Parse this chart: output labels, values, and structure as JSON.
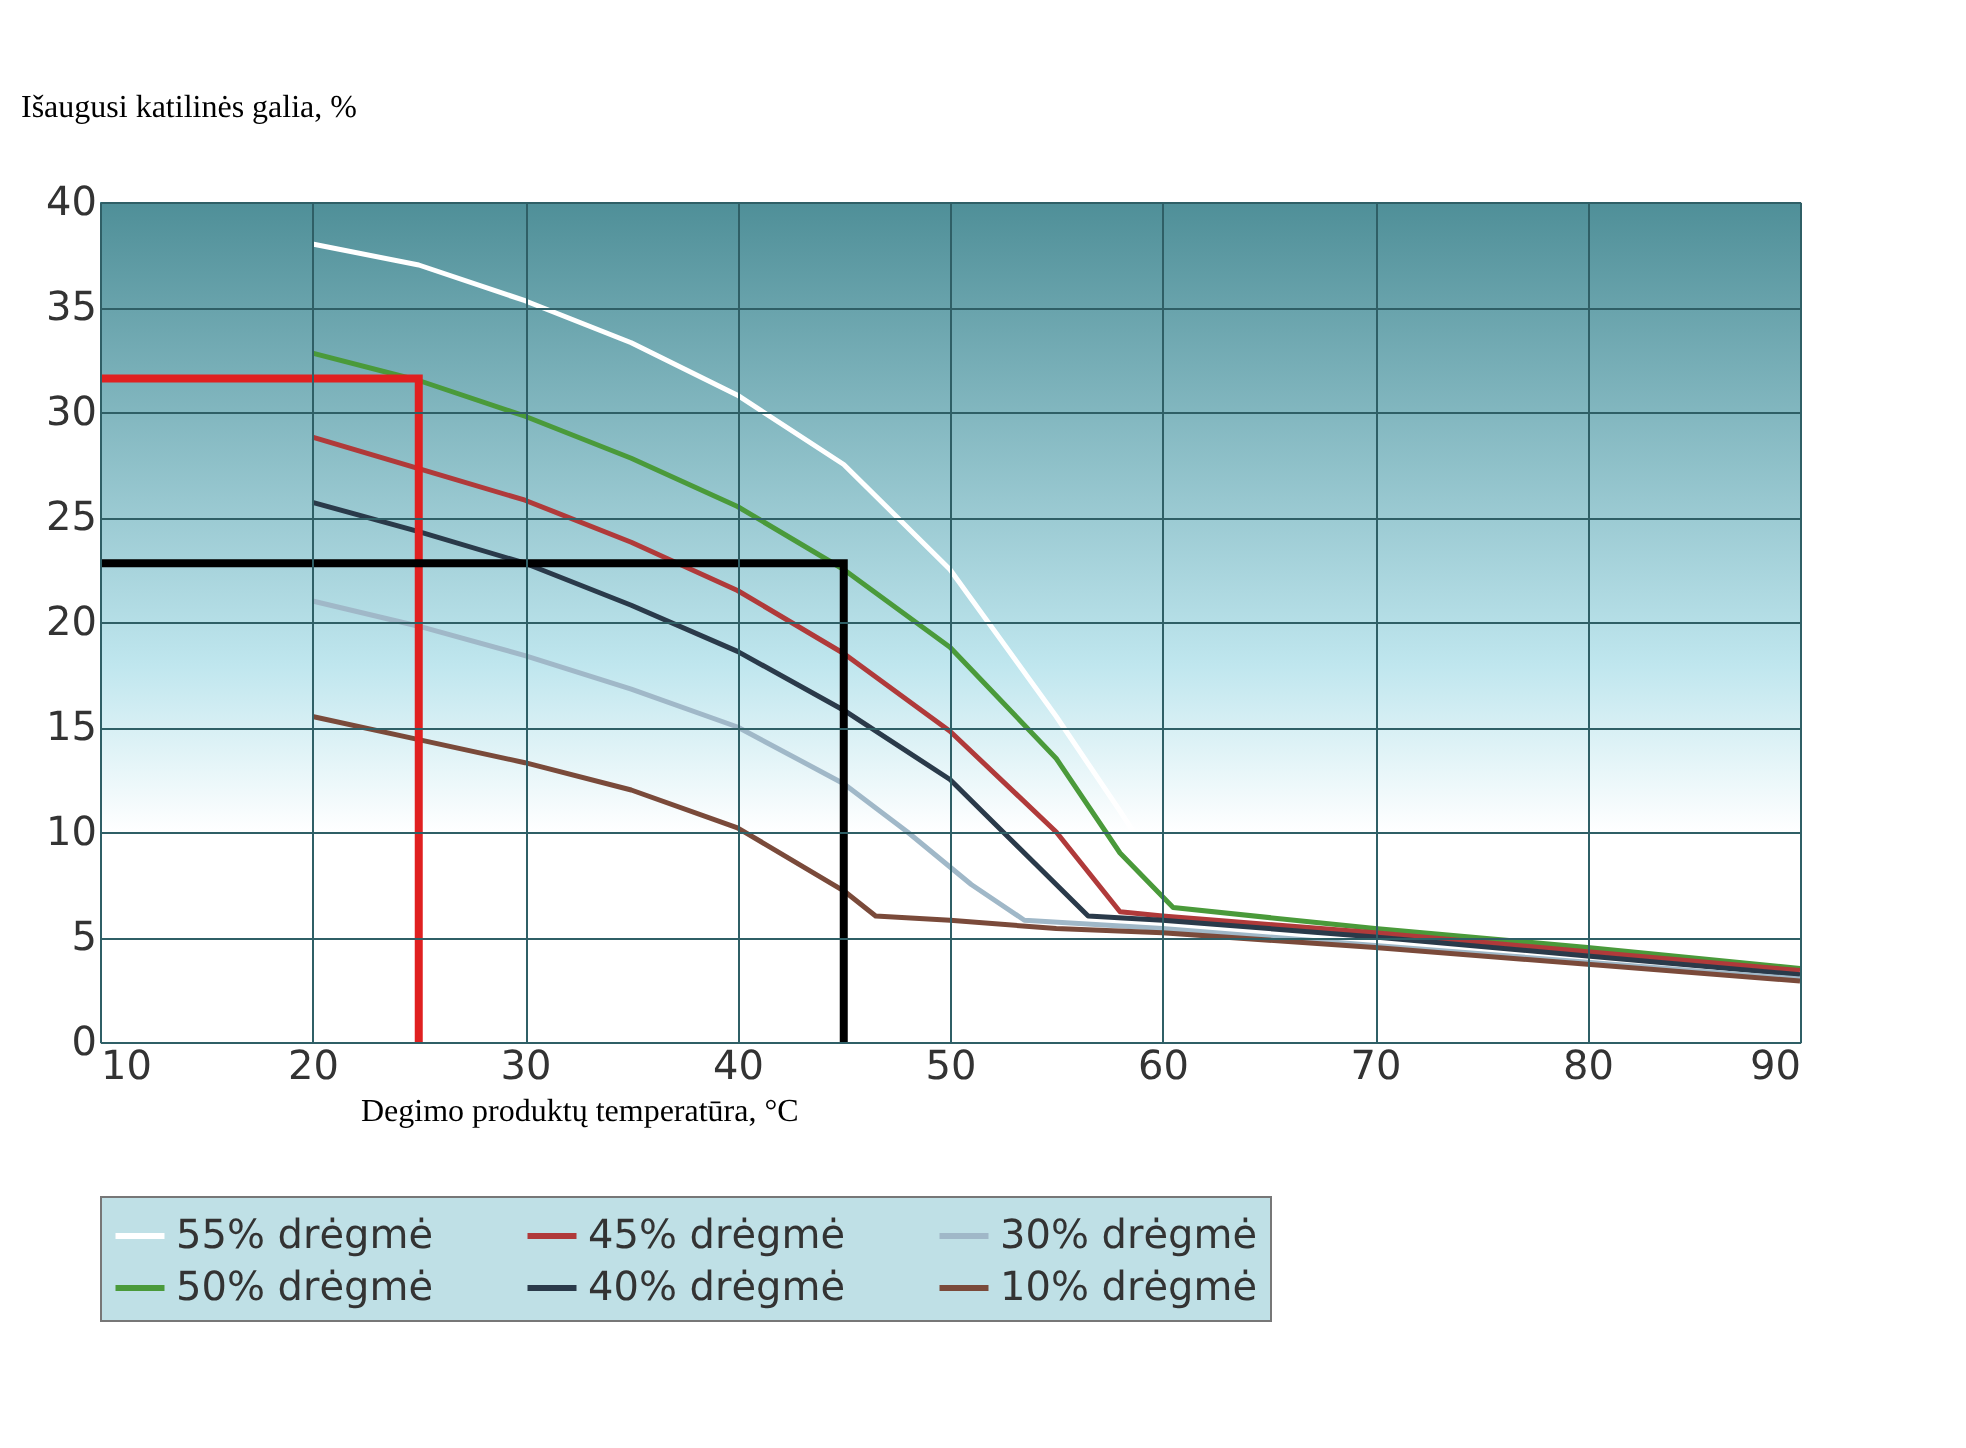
{
  "chart_data": {
    "type": "line",
    "ylabel": "Išaugusi katilinės galia, %",
    "xlabel": "Degimo produktų temperatūra, °C",
    "xlim": [
      10,
      90
    ],
    "xticks": [
      10,
      20,
      30,
      40,
      50,
      60,
      70,
      80,
      90
    ],
    "ylim": [
      0,
      40
    ],
    "yticks": [
      0,
      5,
      10,
      15,
      20,
      25,
      30,
      35,
      40
    ],
    "grid": true,
    "legend": "bottom",
    "marker": "none",
    "line_style": "solid",
    "series": [
      {
        "name": "55% drėgmė",
        "color": "#ffffff",
        "x": [
          20,
          25,
          30,
          35,
          40,
          45,
          50,
          55,
          58,
          61,
          70,
          80,
          90
        ],
        "values": [
          38,
          37,
          35.3,
          33.3,
          30.8,
          27.5,
          22.5,
          15.5,
          11,
          6.3,
          5.3,
          4.4,
          3.5
        ]
      },
      {
        "name": "50% drėgmė",
        "color": "#4a9a3a",
        "x": [
          20,
          25,
          30,
          35,
          40,
          45,
          50,
          55,
          58,
          60.5,
          70,
          80,
          90
        ],
        "values": [
          32.8,
          31.5,
          29.8,
          27.8,
          25.5,
          22.5,
          18.8,
          13.5,
          9,
          6.4,
          5.4,
          4.5,
          3.5
        ]
      },
      {
        "name": "45% drėgmė",
        "color": "#b03a3a",
        "x": [
          20,
          25,
          30,
          35,
          40,
          45,
          50,
          55,
          58,
          60,
          70,
          80,
          90
        ],
        "values": [
          28.8,
          27.3,
          25.8,
          23.8,
          21.5,
          18.5,
          14.8,
          10,
          6.2,
          6,
          5.2,
          4.3,
          3.4
        ]
      },
      {
        "name": "40% drėgmė",
        "color": "#2a3a4a",
        "x": [
          20,
          25,
          30,
          35,
          40,
          45,
          50,
          54,
          56.5,
          60,
          70,
          80,
          90
        ],
        "values": [
          25.7,
          24.3,
          22.8,
          20.8,
          18.6,
          15.8,
          12.5,
          8.5,
          6,
          5.8,
          5,
          4.1,
          3.2
        ]
      },
      {
        "name": "30% drėgmė",
        "color": "#a0b8c8",
        "x": [
          20,
          25,
          30,
          35,
          40,
          45,
          48,
          51,
          53.5,
          60,
          70,
          80,
          90
        ],
        "values": [
          21,
          19.8,
          18.4,
          16.8,
          15,
          12.3,
          10,
          7.5,
          5.8,
          5.4,
          4.6,
          3.8,
          3
        ]
      },
      {
        "name": "10% drėgmė",
        "color": "#7a4a3a",
        "x": [
          20,
          25,
          30,
          35,
          40,
          45,
          46.5,
          50,
          55,
          60,
          70,
          80,
          90
        ],
        "values": [
          15.5,
          14.4,
          13.3,
          12,
          10.2,
          7.2,
          6,
          5.8,
          5.4,
          5.2,
          4.5,
          3.7,
          2.9
        ]
      },
      {
        "color": "#e02020",
        "x": [
          10,
          25,
          25
        ],
        "values": [
          31.6,
          31.6,
          0
        ]
      },
      {
        "color": "#000000",
        "x": [
          10,
          45,
          45
        ],
        "values": [
          22.8,
          22.8,
          0
        ]
      }
    ]
  }
}
